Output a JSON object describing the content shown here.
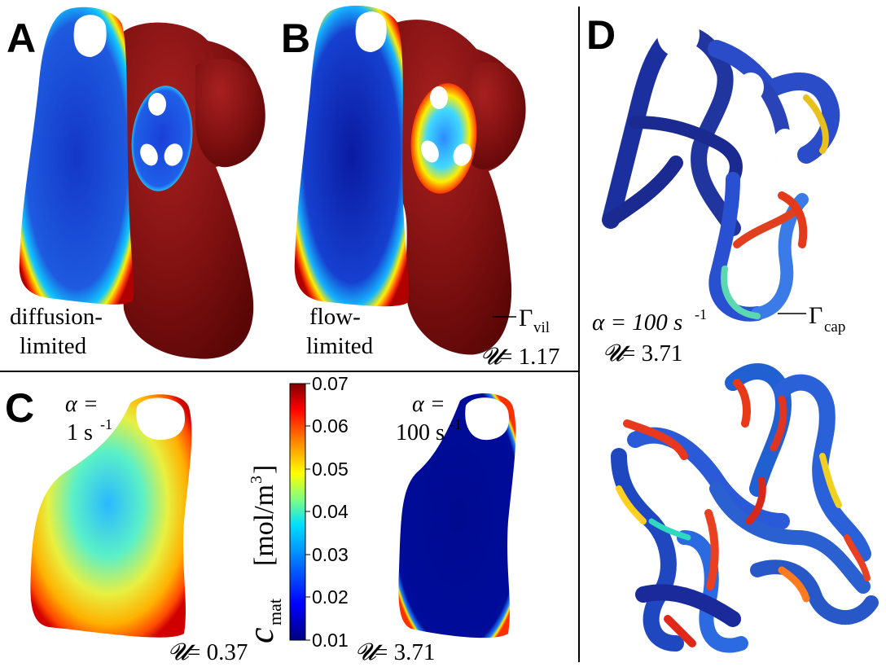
{
  "panels": {
    "A": {
      "letter": "A",
      "label_line1": "diffusion-",
      "label_line2": "limited"
    },
    "B": {
      "letter": "B",
      "label_line1": "flow-",
      "label_line2": "limited",
      "boundary_symbol": "Γ",
      "boundary_sub": "vil",
      "U_symbol": "𝓤",
      "U_value": "= 1.17"
    },
    "C": {
      "letter": "C",
      "left": {
        "alpha_line1": "α =",
        "alpha_value": "1 s",
        "alpha_exp": "-1",
        "U_symbol": "𝓤",
        "U_value": "= 0.37"
      },
      "right": {
        "alpha_line1": "α =",
        "alpha_value": "100 s",
        "alpha_exp": "-1",
        "U_symbol": "𝓤",
        "U_value": "= 3.71"
      }
    },
    "D": {
      "letter": "D",
      "alpha_label": "α = 100 s",
      "alpha_exp": "-1",
      "U_symbol": "𝓤",
      "U_value": "= 3.71",
      "boundary_symbol": "Γ",
      "boundary_sub": "cap"
    }
  },
  "colorbar": {
    "quantity": "c",
    "quantity_sub": "mat",
    "unit": "[mol/m",
    "unit_exp": "3",
    "unit_close": "]",
    "ticks": [
      "0.07",
      "0.06",
      "0.05",
      "0.04",
      "0.03",
      "0.02",
      "0.01"
    ],
    "colormap": [
      "#000080",
      "#0000ff",
      "#00b4ff",
      "#33ffcc",
      "#ffff00",
      "#ff6600",
      "#cc0000",
      "#7f0000"
    ]
  },
  "colors": {
    "tissue": "#7a0c0c",
    "tissue_light": "#a81c1c",
    "low": "#1a2a9e",
    "high": "#d01010"
  }
}
